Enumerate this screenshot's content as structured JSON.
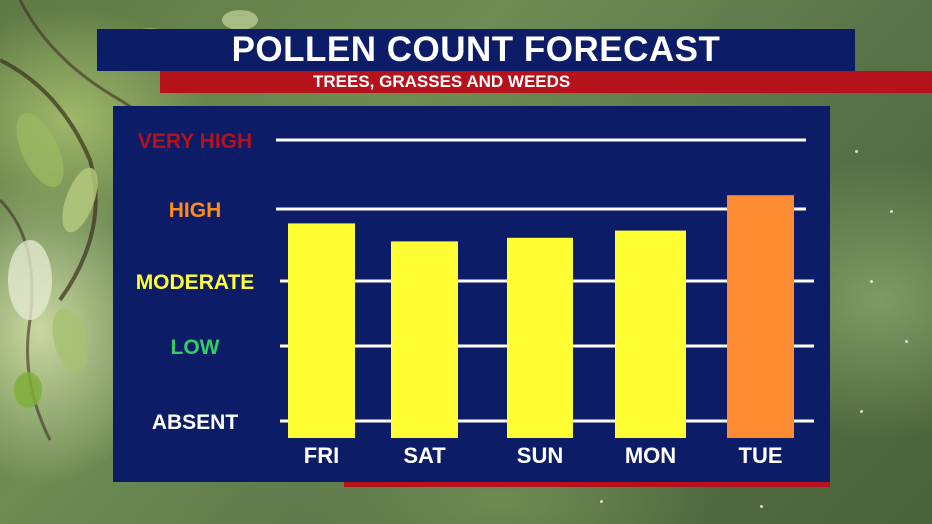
{
  "header": {
    "title": "POLLEN COUNT FORECAST",
    "subtitle": "TREES, GRASSES AND WEEDS"
  },
  "colors": {
    "navy": "#0c1c66",
    "red": "#b5121b",
    "yellow": "#ffff33",
    "orange": "#ff8c33",
    "level_very_high": "#b5121b",
    "level_high": "#ff8c1a",
    "level_moderate": "#ffff33",
    "level_low": "#33cc66",
    "level_absent": "#ffffff"
  },
  "chart_data": {
    "type": "bar",
    "categories": [
      "FRI",
      "SAT",
      "SUN",
      "MON",
      "TUE"
    ],
    "values": [
      2.8,
      2.55,
      2.6,
      2.7,
      3.2
    ],
    "value_scale": "0 = ABSENT, 1 = LOW, 2 = MODERATE, 3 = HIGH, 4 = VERY HIGH",
    "ylim": [
      0,
      4
    ],
    "levels": [
      "ABSENT",
      "LOW",
      "MODERATE",
      "HIGH",
      "VERY HIGH"
    ],
    "bar_colors": [
      "#ffff33",
      "#ffff33",
      "#ffff33",
      "#ffff33",
      "#ff8c33"
    ],
    "grid": true,
    "legend": "none"
  }
}
